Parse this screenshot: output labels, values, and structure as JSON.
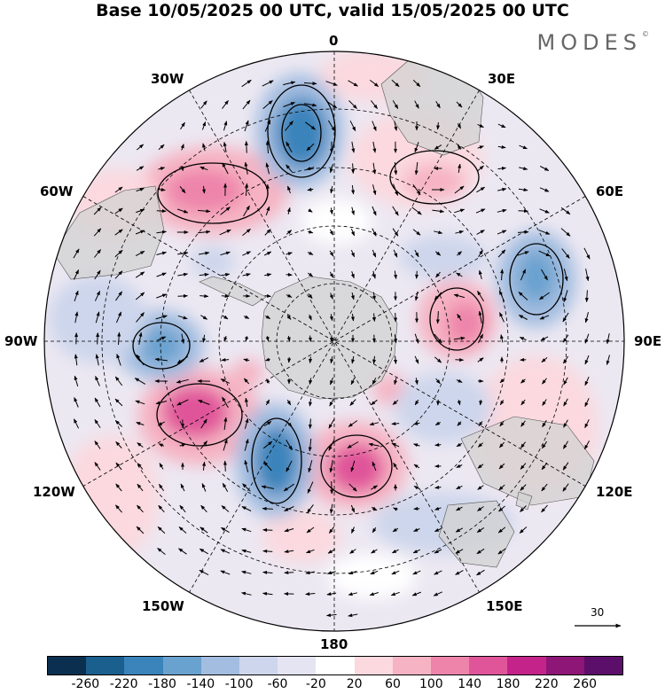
{
  "title": "Base 10/05/2025 00 UTC, valid 15/05/2025 00 UTC",
  "brand": "MODES",
  "brand_mark": "©",
  "longitude_labels": {
    "top": "0",
    "bottom": "180",
    "left": "90W",
    "right": "90E",
    "upper_left_1": "30W",
    "upper_left_2": "60W",
    "lower_left_1": "120W",
    "lower_left_2": "150W",
    "upper_right_1": "30E",
    "upper_right_2": "60E",
    "lower_right_1": "120E",
    "lower_right_2": "150E"
  },
  "reference_vector": {
    "label": "30",
    "icon": "arrow-right-icon"
  },
  "colorbar": {
    "colors": [
      "#0b2f4f",
      "#1a5f8e",
      "#3a84bb",
      "#6aa2cf",
      "#a3bde0",
      "#cdd6ec",
      "#e4e4f2",
      "#ffffff",
      "#fbd9df",
      "#f6b3c3",
      "#ee84aa",
      "#e0559a",
      "#c42489",
      "#8e1677",
      "#5c0f6a"
    ],
    "ticks": [
      "-260",
      "-220",
      "-180",
      "-140",
      "-100",
      "-60",
      "-20",
      "20",
      "60",
      "100",
      "140",
      "180",
      "220",
      "260"
    ]
  }
}
